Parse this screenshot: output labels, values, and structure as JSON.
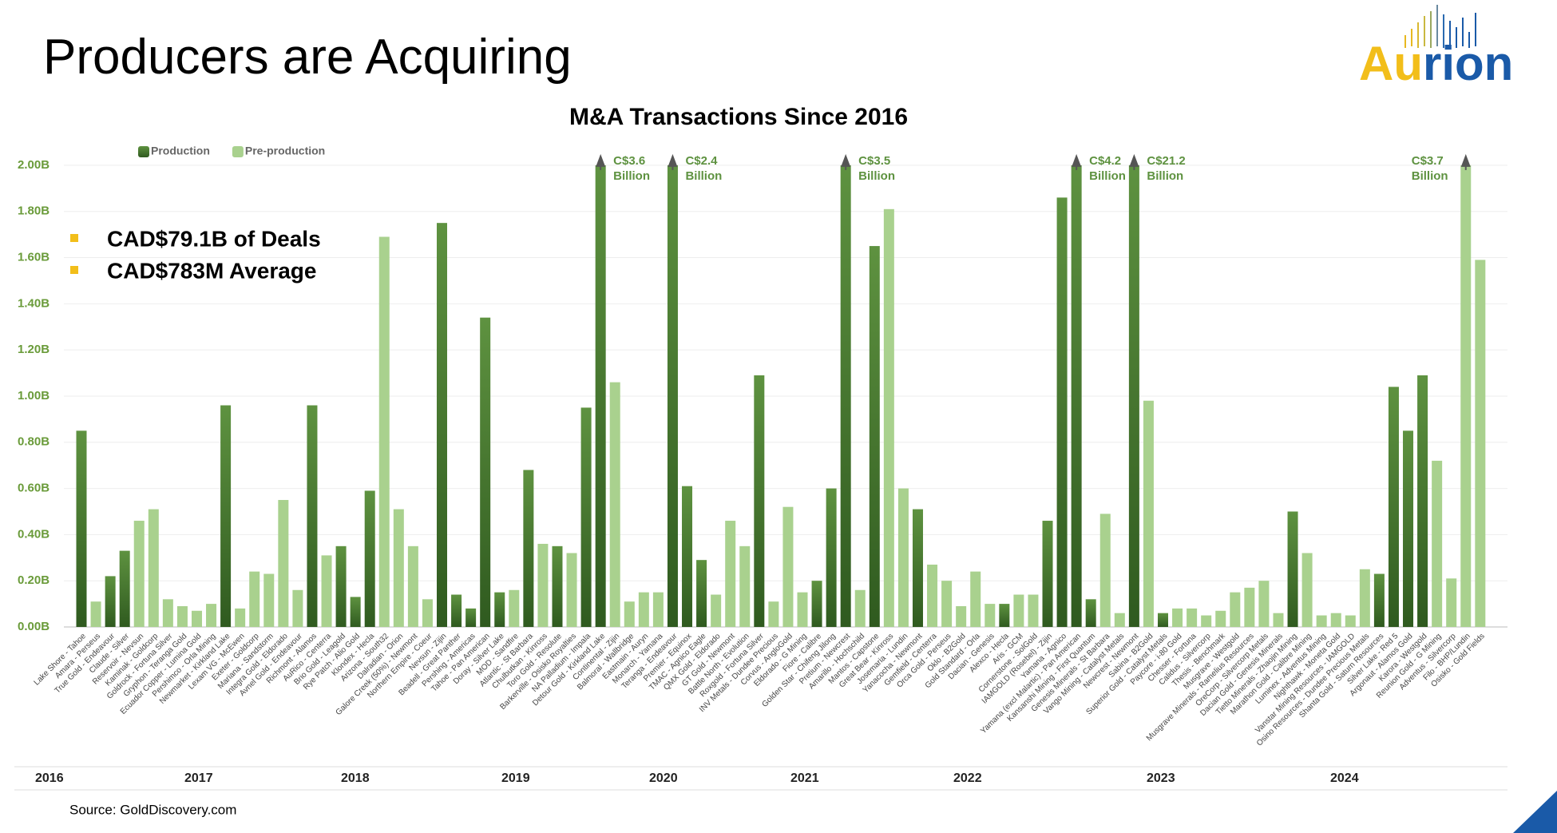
{
  "title": "Producers are Acquiring",
  "logo": [
    "Au",
    "rion"
  ],
  "bullets": [
    "CAD$79.1B of Deals",
    "CAD$783M Average"
  ],
  "source": "Source: GoldDiscovery.com",
  "chart_data": {
    "type": "bar",
    "title": "M&A Transactions Since 2016",
    "categories": [
      "Lake Shore - Tahoe",
      "Amara - Perseus",
      "True Gold - Endeavour",
      "Claude - Silver",
      "Reservoir - Nevsun",
      "Kaminak - Goldcorp",
      "Goldrock - Fortuna Silver",
      "Gryphon - Teranga Gold",
      "Ecuador Copper - Lumina Gold",
      "Pershimco - Orla Mining",
      "Newmarket - Kirkland Lake",
      "Lexam VG - McEwen",
      "Exeter - Goldcorp",
      "Mariana - Sandstorm",
      "Integra Gold - Eldorado",
      "Avnel Gold - Endeavour",
      "Richmont - Alamos",
      "AuRico - Centerra",
      "Brio Gold - Leagold",
      "Rye Patch - Alio Gold",
      "Klondex - Hecla",
      "Arizona - South32",
      "Dalradian - Orion",
      "Galore Creek (50%) - Newmont",
      "Northern Empire - Coeur",
      "Nevsun - Zijin",
      "Beadell - Great Panther",
      "Pershing - Americas",
      "Tahoe - Pan American",
      "Doray - Silver Lake",
      "MOD - Sandfire",
      "Atlantic - St Barbara",
      "Chulbutkan - Kinross",
      "Toro Gold - Resolute",
      "Barkerville - Osisko Royalties",
      "NA Palladium - Impala",
      "Detour Gold - Kirkland Lake",
      "Continental - Zijin",
      "Balmoral - Wallbridge",
      "Eastmain - Auryn",
      "Monarch - Yamana",
      "Teranga - Endeavour",
      "Premier - Equinox",
      "TMAC - Agnico Eagle",
      "QMX Gold - Eldorado",
      "GT Gold - Newmont",
      "Battle North - Evolution",
      "Roxgold - Fortuna Silver",
      "INV Metals - Dundee Precious",
      "Corvus - AngloGold",
      "Eldorado - G Mining",
      "Fiore - Calibre",
      "Golden Star - Chifeng Jilong",
      "Pretium - Newcrest",
      "Amarillo - Hochschild",
      "Mantos - Capstone",
      "Great Bear - Kinross",
      "Josemaria - Lundin",
      "Yanacocha - Newmont",
      "Gemfield - Centerra",
      "Orca Gold - Perseus",
      "Oklo - B2Gold",
      "Gold Standard - Orla",
      "Dacian - Genesis",
      "Alexco - Hecla",
      "Aris - GCM",
      "Cornerstone - SolGold",
      "IAMGOLD (Rosebel) - Zijin",
      "Yamana - Agnico",
      "Yamana (excl Malartic) - Pan American",
      "Kansanshi Mining - First Quantum",
      "Genesis Minerals - St Barbara",
      "Vango Mining - Catalyst Metals",
      "Newcrest - Newmont",
      "Sabina - B2Gold",
      "Superior Gold - Catalyst Metals",
      "Paycore - i-80 Gold",
      "Chesser - Fortuna",
      "Calidus - Silvercorp",
      "Thesis - Benchmark",
      "Musgrave - Westgold",
      "Musgrave Minerals - Ramelius Resources",
      "OreCorp - Silvercorp Metals",
      "Dacian Gold - Genesis Minerals",
      "Tietto Minerals - Zhaojin Mining",
      "Marathon Gold - Calibre Mining",
      "Luminex - Adventus Mining",
      "Nighthawk - Moneta Gold",
      "Vanstar Mining Resources - IAMGOLD",
      "Osino Resources - Dundee Precious Metals",
      "Shanta Gold - Saturn Resources",
      "Silver Lake - Red 5",
      "Argonaut - Alamos Gold",
      "Karora - Westgold",
      "Reunion Gold - G Mining",
      "Adventus - Silvercorp",
      "Filo - BHP/Lundin",
      "Osisko - Gold Fields"
    ],
    "series": [
      {
        "name": "Production",
        "color": "#4a7a30",
        "values": [
          0.85,
          null,
          0.22,
          0.33,
          null,
          null,
          null,
          null,
          null,
          null,
          0.96,
          null,
          null,
          null,
          null,
          null,
          0.96,
          null,
          0.35,
          0.13,
          0.59,
          null,
          null,
          null,
          null,
          1.75,
          0.14,
          0.08,
          1.34,
          0.15,
          null,
          0.68,
          null,
          0.35,
          null,
          0.95,
          2.0,
          null,
          null,
          null,
          null,
          2.0,
          0.61,
          0.29,
          null,
          null,
          null,
          1.09,
          null,
          null,
          null,
          0.2,
          0.6,
          2.0,
          null,
          1.65,
          null,
          null,
          0.51,
          null,
          null,
          null,
          null,
          null,
          0.1,
          null,
          null,
          0.46,
          1.86,
          2.0,
          0.12,
          null,
          null,
          2.0,
          null,
          0.06,
          null,
          null,
          null,
          null,
          null,
          null,
          null,
          null,
          0.5,
          null,
          null,
          null,
          null,
          null,
          0.23,
          1.04,
          0.85,
          1.09,
          null,
          null,
          null,
          null
        ]
      },
      {
        "name": "Pre-production",
        "color": "#a9d18e",
        "values": [
          null,
          0.11,
          null,
          null,
          0.46,
          0.51,
          0.12,
          0.09,
          0.07,
          0.1,
          null,
          0.08,
          0.24,
          0.23,
          0.55,
          0.16,
          null,
          0.31,
          null,
          null,
          null,
          1.69,
          0.51,
          0.35,
          0.12,
          null,
          null,
          null,
          null,
          null,
          0.16,
          null,
          0.36,
          null,
          0.32,
          null,
          null,
          1.06,
          0.11,
          0.15,
          0.15,
          null,
          null,
          null,
          0.14,
          0.46,
          0.35,
          null,
          0.11,
          0.52,
          0.15,
          null,
          null,
          null,
          0.16,
          null,
          1.81,
          0.6,
          null,
          0.27,
          0.2,
          0.09,
          0.24,
          0.1,
          null,
          0.14,
          0.14,
          null,
          null,
          null,
          null,
          0.49,
          0.06,
          null,
          0.98,
          null,
          0.08,
          0.08,
          0.05,
          0.07,
          0.15,
          0.17,
          0.2,
          0.06,
          null,
          0.32,
          0.05,
          0.06,
          0.05,
          0.25,
          null,
          null,
          null,
          null,
          0.72,
          0.21,
          2.0,
          1.59
        ]
      }
    ],
    "ylim": [
      0,
      2.1
    ],
    "yticks": [
      {
        "value": 0,
        "label": "0.00B"
      },
      {
        "value": 0.2,
        "label": "0.20B"
      },
      {
        "value": 0.4,
        "label": "0.40B"
      },
      {
        "value": 0.6,
        "label": "0.60B"
      },
      {
        "value": 0.8,
        "label": "0.80B"
      },
      {
        "value": 1.0,
        "label": "1.00B"
      },
      {
        "value": 1.2,
        "label": "1.20B"
      },
      {
        "value": 1.4,
        "label": "1.40B"
      },
      {
        "value": 1.6,
        "label": "1.60B"
      },
      {
        "value": 1.8,
        "label": "1.80B"
      },
      {
        "value": 2.0,
        "label": "2.00B"
      }
    ],
    "grid": true,
    "legend": "top-left",
    "annotations": [
      [
        "C$3.6",
        "Billion"
      ],
      [
        "C$2.4",
        "Billion"
      ],
      [
        "C$3.5",
        "Billion"
      ],
      [
        "C$4.2",
        "Billion"
      ],
      [
        "C$21.2",
        "Billion"
      ],
      [
        "C$3.7",
        "Billion"
      ]
    ],
    "years": [
      "2016",
      "2017",
      "2018",
      "2019",
      "2020",
      "2021",
      "2022",
      "2023",
      "2024"
    ]
  }
}
